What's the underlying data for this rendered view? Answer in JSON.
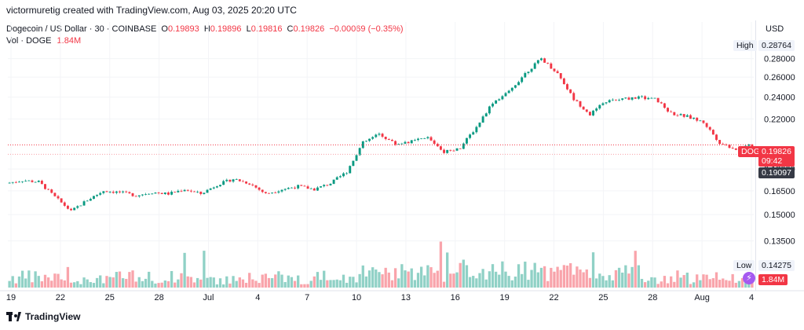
{
  "header": {
    "attribution": "victormuretig created with TradingView.com, Aug 03, 2025 20:20 UTC"
  },
  "legend": {
    "symbol": "Dogecoin / US Dollar · 30 · COINBASE",
    "o_label": "O",
    "o_value": "0.19893",
    "h_label": "H",
    "h_value": "0.19896",
    "l_label": "L",
    "l_value": "0.19816",
    "c_label": "C",
    "c_value": "0.19826",
    "change": "−0.00069 (−0.35%)",
    "vol_label": "Vol · DOGE",
    "vol_value": "1.84M"
  },
  "price_axis": {
    "currency": "USD",
    "ticks": [
      "0.28000",
      "0.26000",
      "0.24000",
      "0.22000",
      "0.18000",
      "0.16500",
      "0.15000",
      "0.13500"
    ],
    "high_label": "High",
    "high_value": "0.28764",
    "symbol_tag": "DOGEUSD",
    "last_value": "0.19826",
    "countdown": "09:42",
    "line_value": "0.19097",
    "low_label": "Low",
    "low_value": "0.14275",
    "volume_value": "1.84M"
  },
  "time_axis": {
    "ticks": [
      "19",
      "22",
      "25",
      "28",
      "Jul",
      "4",
      "7",
      "10",
      "13",
      "16",
      "19",
      "22",
      "25",
      "28",
      "Aug",
      "4"
    ]
  },
  "colors": {
    "up": "#089981",
    "down": "#f23645",
    "last_price": "#f23645",
    "grid": "#f0f3fa"
  },
  "chart_data": {
    "type": "line",
    "title": "Dogecoin / US Dollar · 30 · COINBASE",
    "scale": "logarithmic",
    "ylim": [
      0.137,
      0.295
    ],
    "x": [
      "Jun 18",
      "Jun 19",
      "Jun 20",
      "Jun 21",
      "Jun 22",
      "Jun 23",
      "Jun 24",
      "Jun 25",
      "Jun 26",
      "Jun 27",
      "Jun 28",
      "Jun 29",
      "Jun 30",
      "Jul 1",
      "Jul 2",
      "Jul 3",
      "Jul 4",
      "Jul 5",
      "Jul 6",
      "Jul 7",
      "Jul 8",
      "Jul 9",
      "Jul 10",
      "Jul 11",
      "Jul 12",
      "Jul 13",
      "Jul 14",
      "Jul 15",
      "Jul 16",
      "Jul 17",
      "Jul 18",
      "Jul 19",
      "Jul 20",
      "Jul 21",
      "Jul 22",
      "Jul 23",
      "Jul 24",
      "Jul 25",
      "Jul 26",
      "Jul 27",
      "Jul 28",
      "Jul 29",
      "Jul 30",
      "Jul 31",
      "Aug 1",
      "Aug 2",
      "Aug 3"
    ],
    "series": [
      {
        "values": [
          0.17,
          0.172,
          0.171,
          0.161,
          0.152,
          0.159,
          0.165,
          0.164,
          0.162,
          0.164,
          0.163,
          0.166,
          0.163,
          0.169,
          0.173,
          0.17,
          0.163,
          0.166,
          0.168,
          0.166,
          0.17,
          0.178,
          0.2,
          0.207,
          0.199,
          0.201,
          0.204,
          0.193,
          0.196,
          0.213,
          0.235,
          0.245,
          0.264,
          0.28,
          0.264,
          0.238,
          0.224,
          0.236,
          0.238,
          0.24,
          0.238,
          0.225,
          0.222,
          0.217,
          0.2,
          0.195,
          0.198
        ]
      }
    ],
    "volume_note": "Volume histogram in lower pane"
  }
}
